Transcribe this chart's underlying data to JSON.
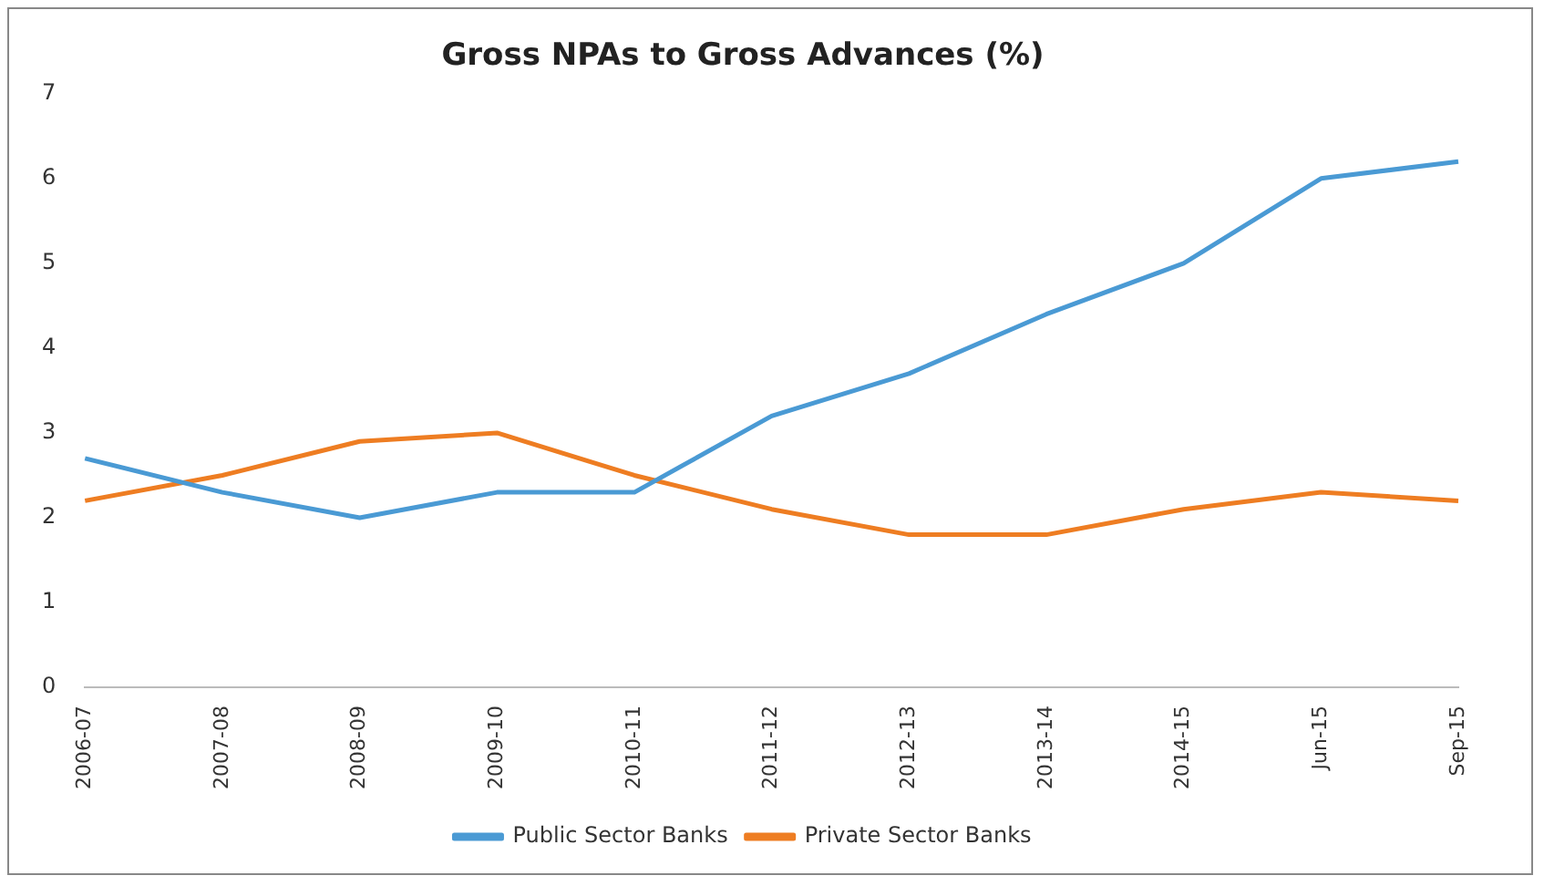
{
  "chart_data": {
    "type": "line",
    "title": "Gross NPAs to Gross Advances (%)",
    "categories": [
      "2006-07",
      "2007-08",
      "2008-09",
      "2009-10",
      "2010-11",
      "2011-12",
      "2012-13",
      "2013-14",
      "2014-15",
      "Jun-15",
      "Sep-15"
    ],
    "series": [
      {
        "name": "Public Sector Banks",
        "color": "#4a9ad4",
        "values": [
          2.7,
          2.3,
          2.0,
          2.3,
          2.3,
          3.2,
          3.7,
          4.4,
          5.0,
          6.0,
          6.2
        ]
      },
      {
        "name": "Private Sector Banks",
        "color": "#ee7d22",
        "values": [
          2.2,
          2.5,
          2.9,
          3.0,
          2.5,
          2.1,
          1.8,
          1.8,
          2.1,
          2.3,
          2.2
        ]
      }
    ],
    "ylim": [
      0,
      7
    ],
    "yticks": [
      0,
      1,
      2,
      3,
      4,
      5,
      6,
      7
    ],
    "grid": false,
    "legend": "bottom",
    "marker": "none",
    "line_style": "solid"
  }
}
